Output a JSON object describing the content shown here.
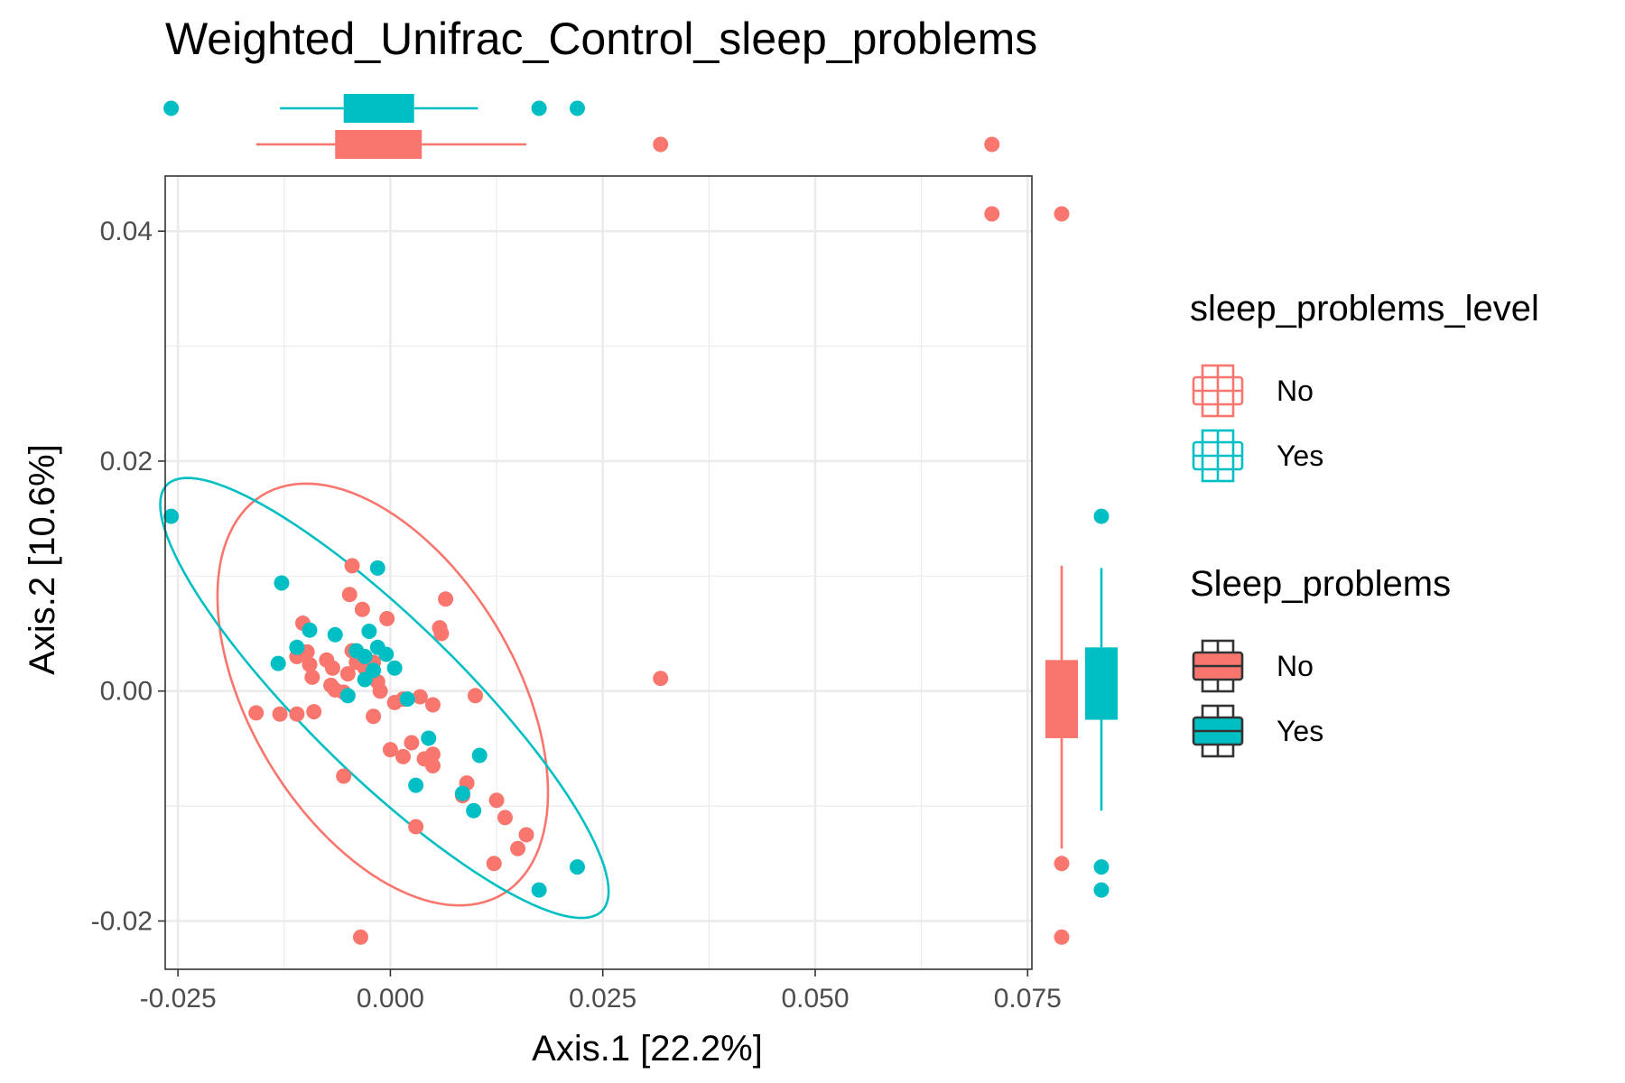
{
  "chart_data": {
    "type": "scatter",
    "title": "Weighted_Unifrac_Control_sleep_problems",
    "xlabel": "Axis.1   [22.2%]",
    "ylabel": "Axis.2   [10.6%]",
    "xlim": [
      -0.0265,
      0.0755
    ],
    "ylim": [
      -0.0242,
      0.0448
    ],
    "x_ticks": [
      -0.025,
      0.0,
      0.025,
      0.05,
      0.075
    ],
    "x_tick_labels": [
      "-0.025",
      "0.000",
      "0.025",
      "0.050",
      "0.075"
    ],
    "y_ticks": [
      -0.02,
      0.0,
      0.02,
      0.04
    ],
    "y_tick_labels": [
      "-0.02",
      "0.00",
      "0.02",
      "0.04"
    ],
    "grid": true,
    "colors": {
      "No": "#F8766D",
      "Yes": "#00BFC4"
    },
    "series": [
      {
        "name": "No",
        "points": [
          [
            0.0708,
            0.0415
          ],
          [
            0.0318,
            0.0011
          ],
          [
            -0.0035,
            -0.0214
          ],
          [
            -0.0045,
            0.0109
          ],
          [
            -0.0048,
            0.0084
          ],
          [
            -0.0033,
            0.0071
          ],
          [
            -0.0004,
            0.0063
          ],
          [
            0.0058,
            0.0055
          ],
          [
            0.0065,
            0.008
          ],
          [
            0.006,
            0.005
          ],
          [
            -0.0103,
            0.0059
          ],
          [
            -0.0098,
            0.0034
          ],
          [
            -0.011,
            0.003
          ],
          [
            -0.0095,
            0.0023
          ],
          [
            -0.0092,
            0.0012
          ],
          [
            -0.0075,
            0.0027
          ],
          [
            -0.0068,
            0.002
          ],
          [
            -0.007,
            0.0005
          ],
          [
            -0.0065,
            0.0001
          ],
          [
            -0.0055,
            -0.0001
          ],
          [
            -0.005,
            0.0015
          ],
          [
            -0.0045,
            0.0035
          ],
          [
            -0.004,
            0.0025
          ],
          [
            -0.003,
            0.002
          ],
          [
            -0.0025,
            0.0013
          ],
          [
            -0.002,
            0.0025
          ],
          [
            -0.0015,
            0.0008
          ],
          [
            -0.0012,
            0.0
          ],
          [
            0.0005,
            -0.001
          ],
          [
            0.0015,
            -0.0007
          ],
          [
            0.0035,
            -0.0005
          ],
          [
            0.005,
            -0.0012
          ],
          [
            -0.0158,
            -0.0019
          ],
          [
            -0.013,
            -0.002
          ],
          [
            -0.011,
            -0.002
          ],
          [
            -0.009,
            -0.0018
          ],
          [
            -0.002,
            -0.0022
          ],
          [
            0.0,
            -0.0051
          ],
          [
            0.0015,
            -0.0057
          ],
          [
            0.0025,
            -0.0045
          ],
          [
            0.004,
            -0.0059
          ],
          [
            0.005,
            -0.0065
          ],
          [
            0.005,
            -0.0055
          ],
          [
            -0.0055,
            -0.0074
          ],
          [
            0.009,
            -0.008
          ],
          [
            0.0085,
            -0.0091
          ],
          [
            0.0125,
            -0.0095
          ],
          [
            0.0135,
            -0.011
          ],
          [
            0.016,
            -0.0125
          ],
          [
            0.015,
            -0.0137
          ],
          [
            0.0122,
            -0.015
          ],
          [
            0.01,
            -0.0004
          ],
          [
            0.003,
            -0.0118
          ]
        ]
      },
      {
        "name": "Yes",
        "points": [
          [
            -0.0258,
            0.0152
          ],
          [
            0.022,
            -0.0153
          ],
          [
            0.0175,
            -0.0173
          ],
          [
            -0.0128,
            0.0094
          ],
          [
            -0.0015,
            0.0107
          ],
          [
            -0.0025,
            0.0052
          ],
          [
            -0.0065,
            0.0049
          ],
          [
            -0.0095,
            0.0053
          ],
          [
            -0.011,
            0.0038
          ],
          [
            -0.004,
            0.0035
          ],
          [
            -0.003,
            0.003
          ],
          [
            -0.0015,
            0.0038
          ],
          [
            -0.0005,
            0.0032
          ],
          [
            0.0005,
            0.002
          ],
          [
            -0.002,
            0.0018
          ],
          [
            -0.003,
            0.001
          ],
          [
            -0.005,
            -0.0004
          ],
          [
            -0.0132,
            0.0024
          ],
          [
            0.002,
            -0.0007
          ],
          [
            0.0045,
            -0.0041
          ],
          [
            0.0105,
            -0.0056
          ],
          [
            0.003,
            -0.0082
          ],
          [
            0.0085,
            -0.0089
          ],
          [
            0.0098,
            -0.0104
          ]
        ]
      }
    ],
    "ellipses": [
      {
        "name": "No",
        "cx": -0.0009,
        "cy": -0.0003,
        "angle": -41.4,
        "a": 0.0229,
        "b": 0.0138
      },
      {
        "name": "Yes",
        "cx": -0.0007,
        "cy": -0.0006,
        "angle": -34.8,
        "a": 0.0317,
        "b": 0.0076
      }
    ],
    "x_boxplots": [
      {
        "name": "Yes",
        "whisker_low": -0.013,
        "q1": -0.0055,
        "median": -0.003,
        "q3": 0.0028,
        "whisker_high": 0.0103,
        "outliers": [
          -0.0258,
          0.0175,
          0.022
        ]
      },
      {
        "name": "No",
        "whisker_low": -0.0158,
        "q1": -0.0065,
        "median": -0.002,
        "q3": 0.0037,
        "whisker_high": 0.016,
        "outliers": [
          0.0318,
          0.0708
        ]
      }
    ],
    "y_boxplots": [
      {
        "name": "No",
        "whisker_low": -0.0137,
        "q1": -0.0041,
        "median": 0.0,
        "q3": 0.0027,
        "whisker_high": 0.0109,
        "outliers": [
          -0.015,
          -0.0214,
          0.0415
        ]
      },
      {
        "name": "Yes",
        "whisker_low": -0.0104,
        "q1": -0.0025,
        "median": 0.0013,
        "q3": 0.0038,
        "whisker_high": 0.0107,
        "outliers": [
          -0.0153,
          -0.0173,
          0.0152
        ]
      }
    ],
    "legends": [
      {
        "title": "sleep_problems_level",
        "style": "outline",
        "entries": [
          "No",
          "Yes"
        ]
      },
      {
        "title": "Sleep_problems",
        "style": "filled",
        "entries": [
          "No",
          "Yes"
        ]
      }
    ],
    "legend_position": "right"
  }
}
